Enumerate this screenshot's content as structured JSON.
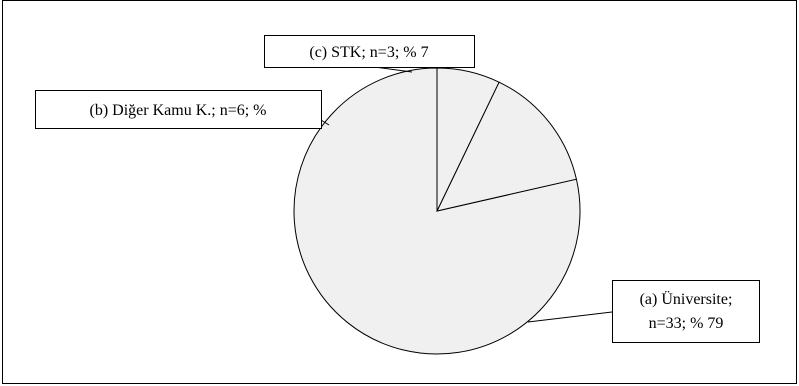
{
  "chart_data": {
    "type": "pie",
    "title": "",
    "legend": "none",
    "slice_color": "#f0f0f0",
    "slices": [
      {
        "label_lines": [
          "(a) Üniversite;",
          "n=33; % 79"
        ],
        "n": 33,
        "percent": 79
      },
      {
        "label_lines": [
          "(b) Diğer Kamu K.; n=6; %"
        ],
        "n": 6,
        "percent": 14
      },
      {
        "label_lines": [
          "(c) STK; n=3; % 7"
        ],
        "n": 3,
        "percent": 7
      }
    ]
  }
}
